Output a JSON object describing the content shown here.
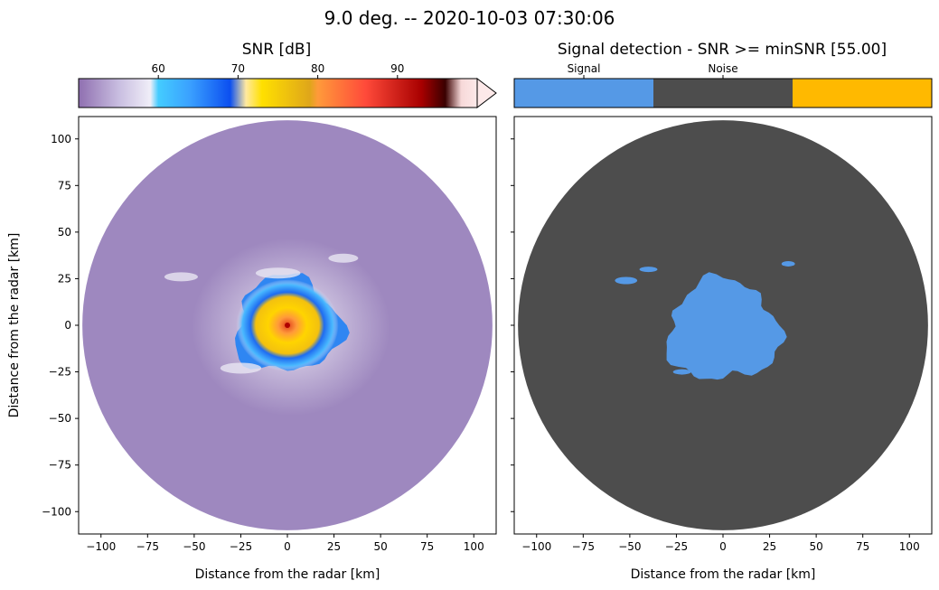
{
  "figure": {
    "title": "9.0 deg. -- 2020-10-03 07:30:06"
  },
  "chart_data": [
    {
      "type": "heatmap",
      "title": "SNR [dB]",
      "xlabel": "Distance from the radar [km]",
      "ylabel": "Distance from the radar [km]",
      "xlim": [
        -112,
        112
      ],
      "ylim": [
        -112,
        112
      ],
      "xticks": [
        -100,
        -75,
        -50,
        -25,
        0,
        25,
        50,
        75,
        100
      ],
      "xtick_labels": [
        "−100",
        "−75",
        "−50",
        "−25",
        "0",
        "25",
        "50",
        "75",
        "100"
      ],
      "yticks": [
        100,
        75,
        50,
        25,
        0,
        -25,
        -50,
        -75,
        -100
      ],
      "ytick_labels": [
        "100",
        "75",
        "50",
        "25",
        "0",
        "−25",
        "−50",
        "−75",
        "−100"
      ],
      "grid": false,
      "colorbar": {
        "range": [
          50,
          100
        ],
        "ticks": [
          60,
          70,
          80,
          90
        ],
        "tick_labels": [
          "60",
          "70",
          "80",
          "90"
        ],
        "extend": "max",
        "stops": [
          {
            "value": 50,
            "color": "#8f6fb0"
          },
          {
            "value": 55,
            "color": "#c8bde0"
          },
          {
            "value": 59,
            "color": "#f0eef8"
          },
          {
            "value": 60,
            "color": "#44ccff"
          },
          {
            "value": 64,
            "color": "#3aa0ff"
          },
          {
            "value": 69,
            "color": "#0c4ff0"
          },
          {
            "value": 71,
            "color": "#ffe9a0"
          },
          {
            "value": 73,
            "color": "#ffe000"
          },
          {
            "value": 79,
            "color": "#dfa61a"
          },
          {
            "value": 80,
            "color": "#ff9a3a"
          },
          {
            "value": 86,
            "color": "#ff4a3a"
          },
          {
            "value": 93,
            "color": "#a80000"
          },
          {
            "value": 96,
            "color": "#3a0000"
          },
          {
            "value": 98,
            "color": "#f7d9d9"
          },
          {
            "value": 100,
            "color": "#fde9e9"
          }
        ]
      },
      "radar_range_km": 110,
      "background_color": "#9e88bf",
      "echo": {
        "center": [
          0,
          0
        ],
        "radius_km": 28
      }
    },
    {
      "type": "heatmap",
      "title": "Signal detection - SNR >= minSNR [55.00]",
      "xlabel": "Distance from the radar [km]",
      "xlim": [
        -112,
        112
      ],
      "ylim": [
        -112,
        112
      ],
      "xticks": [
        -100,
        -75,
        -50,
        -25,
        0,
        25,
        50,
        75,
        100
      ],
      "xtick_labels": [
        "−100",
        "−75",
        "−50",
        "−25",
        "0",
        "25",
        "50",
        "75",
        "100"
      ],
      "yticks": [
        100,
        75,
        50,
        25,
        0,
        -25,
        -50,
        -75,
        -100
      ],
      "grid": false,
      "categories": [
        "Signal",
        "Noise",
        ""
      ],
      "colors": [
        "#5599e6",
        "#4d4d4d",
        "#ffb900"
      ],
      "radar_range_km": 110,
      "signal_region": {
        "center": [
          0,
          -3
        ],
        "radius_km": 30
      }
    }
  ]
}
